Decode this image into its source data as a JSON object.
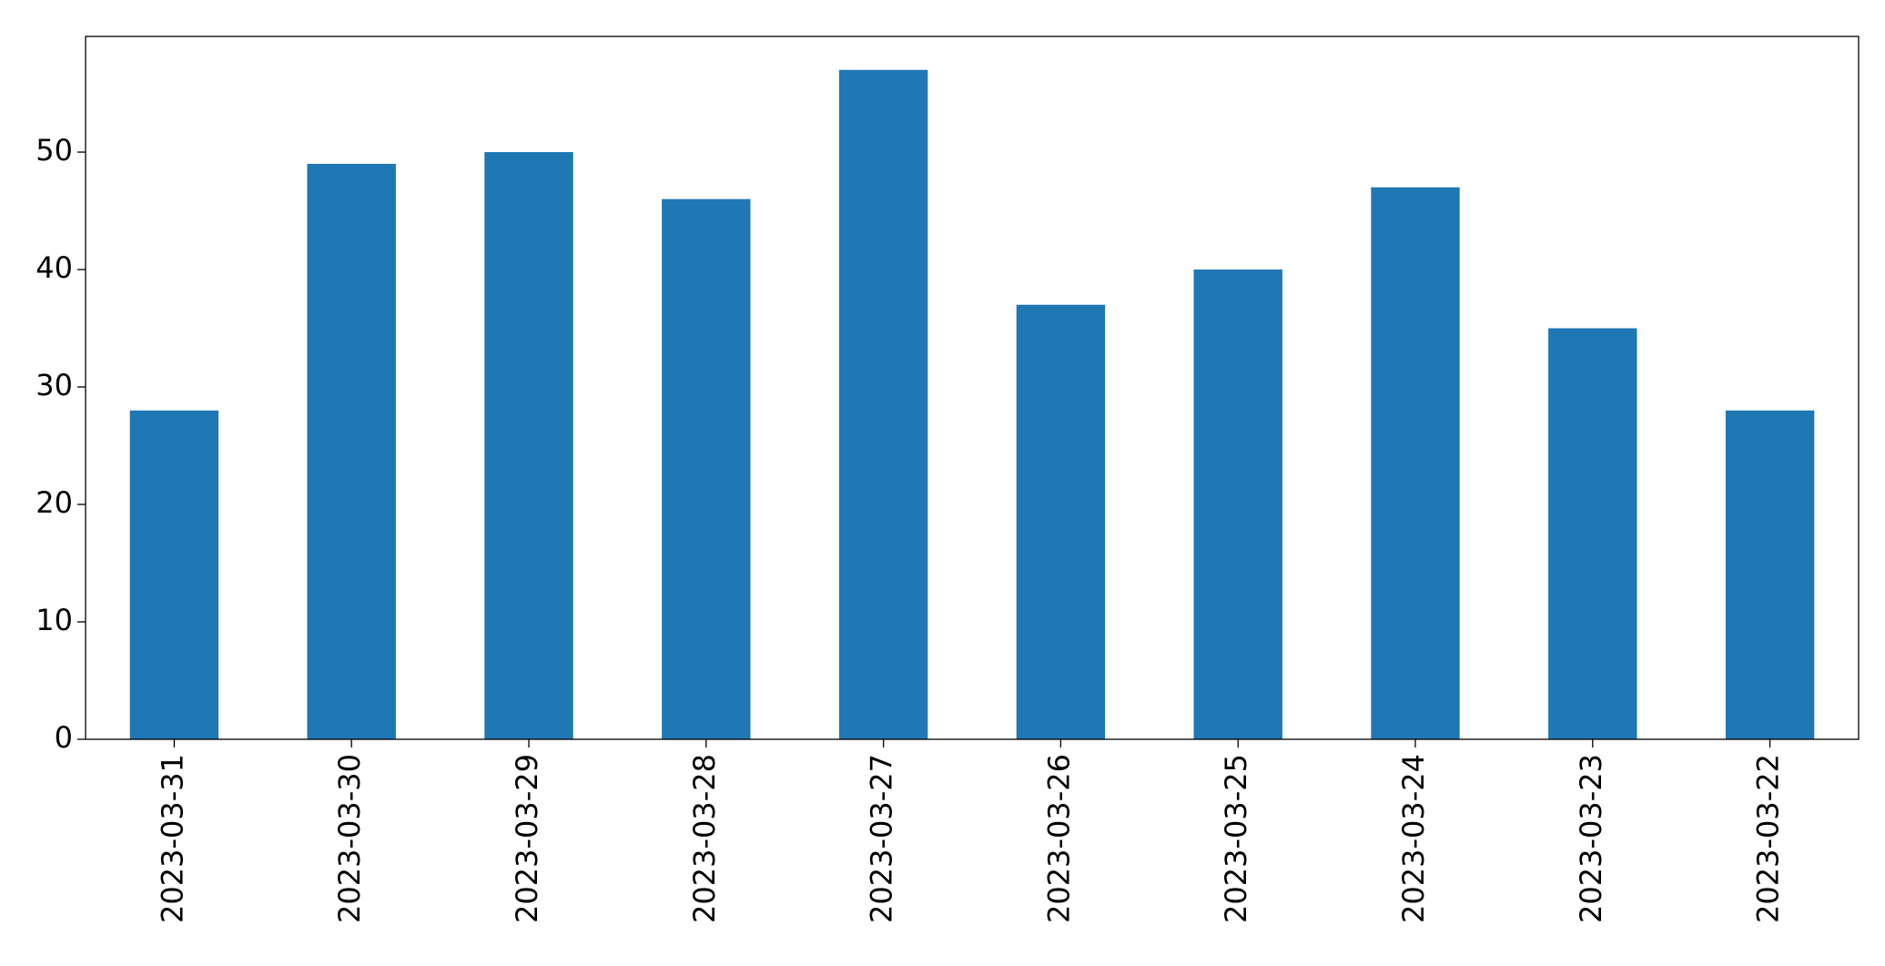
{
  "chart_data": {
    "type": "bar",
    "categories": [
      "2023-03-31",
      "2023-03-30",
      "2023-03-29",
      "2023-03-28",
      "2023-03-27",
      "2023-03-26",
      "2023-03-25",
      "2023-03-24",
      "2023-03-23",
      "2023-03-22"
    ],
    "values": [
      28,
      49,
      50,
      46,
      57,
      37,
      40,
      47,
      35,
      28
    ],
    "color": "#1f77b4",
    "ylim": [
      0,
      59.85
    ],
    "yticks": [
      0,
      10,
      20,
      30,
      40,
      50
    ],
    "grid": false
  }
}
